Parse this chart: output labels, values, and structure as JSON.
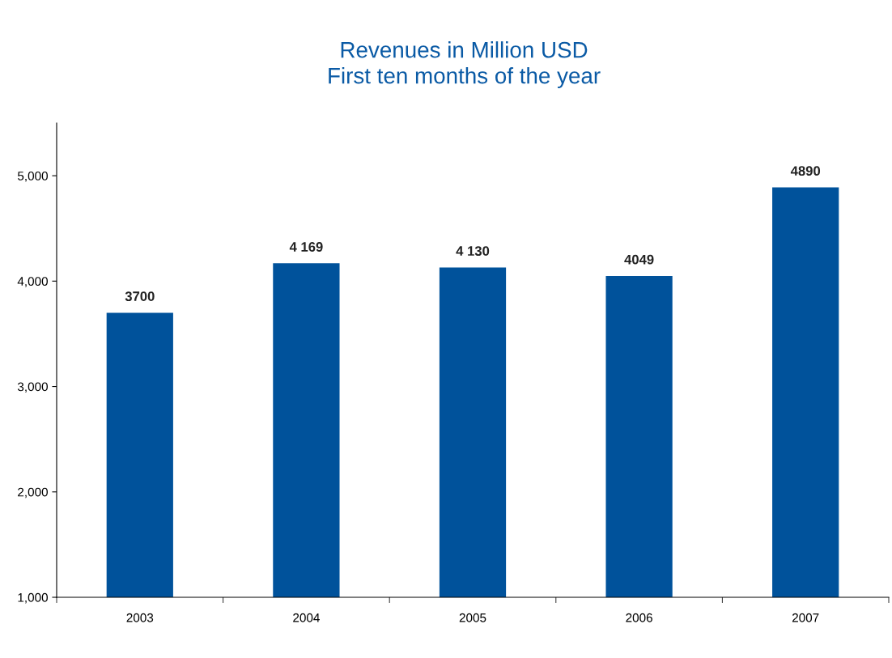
{
  "chart_data": {
    "type": "bar",
    "title": "Revenues in Million USD\nFirst ten months of the year",
    "categories": [
      "2003",
      "2004",
      "2005",
      "2006",
      "2007"
    ],
    "values": [
      3700,
      4169,
      4130,
      4049,
      4890
    ],
    "value_labels": [
      "3700",
      "4 169",
      "4 130",
      "4049",
      "4890"
    ],
    "color": "#00529b",
    "ylim": [
      1000,
      5500
    ],
    "yticks": [
      {
        "value": 1000,
        "label": "1,000"
      },
      {
        "value": 2000,
        "label": "2,000"
      },
      {
        "value": 3000,
        "label": "3,000"
      },
      {
        "value": 4000,
        "label": "4,000"
      },
      {
        "value": 5000,
        "label": "5,000"
      }
    ],
    "grid": false,
    "legend": false
  }
}
